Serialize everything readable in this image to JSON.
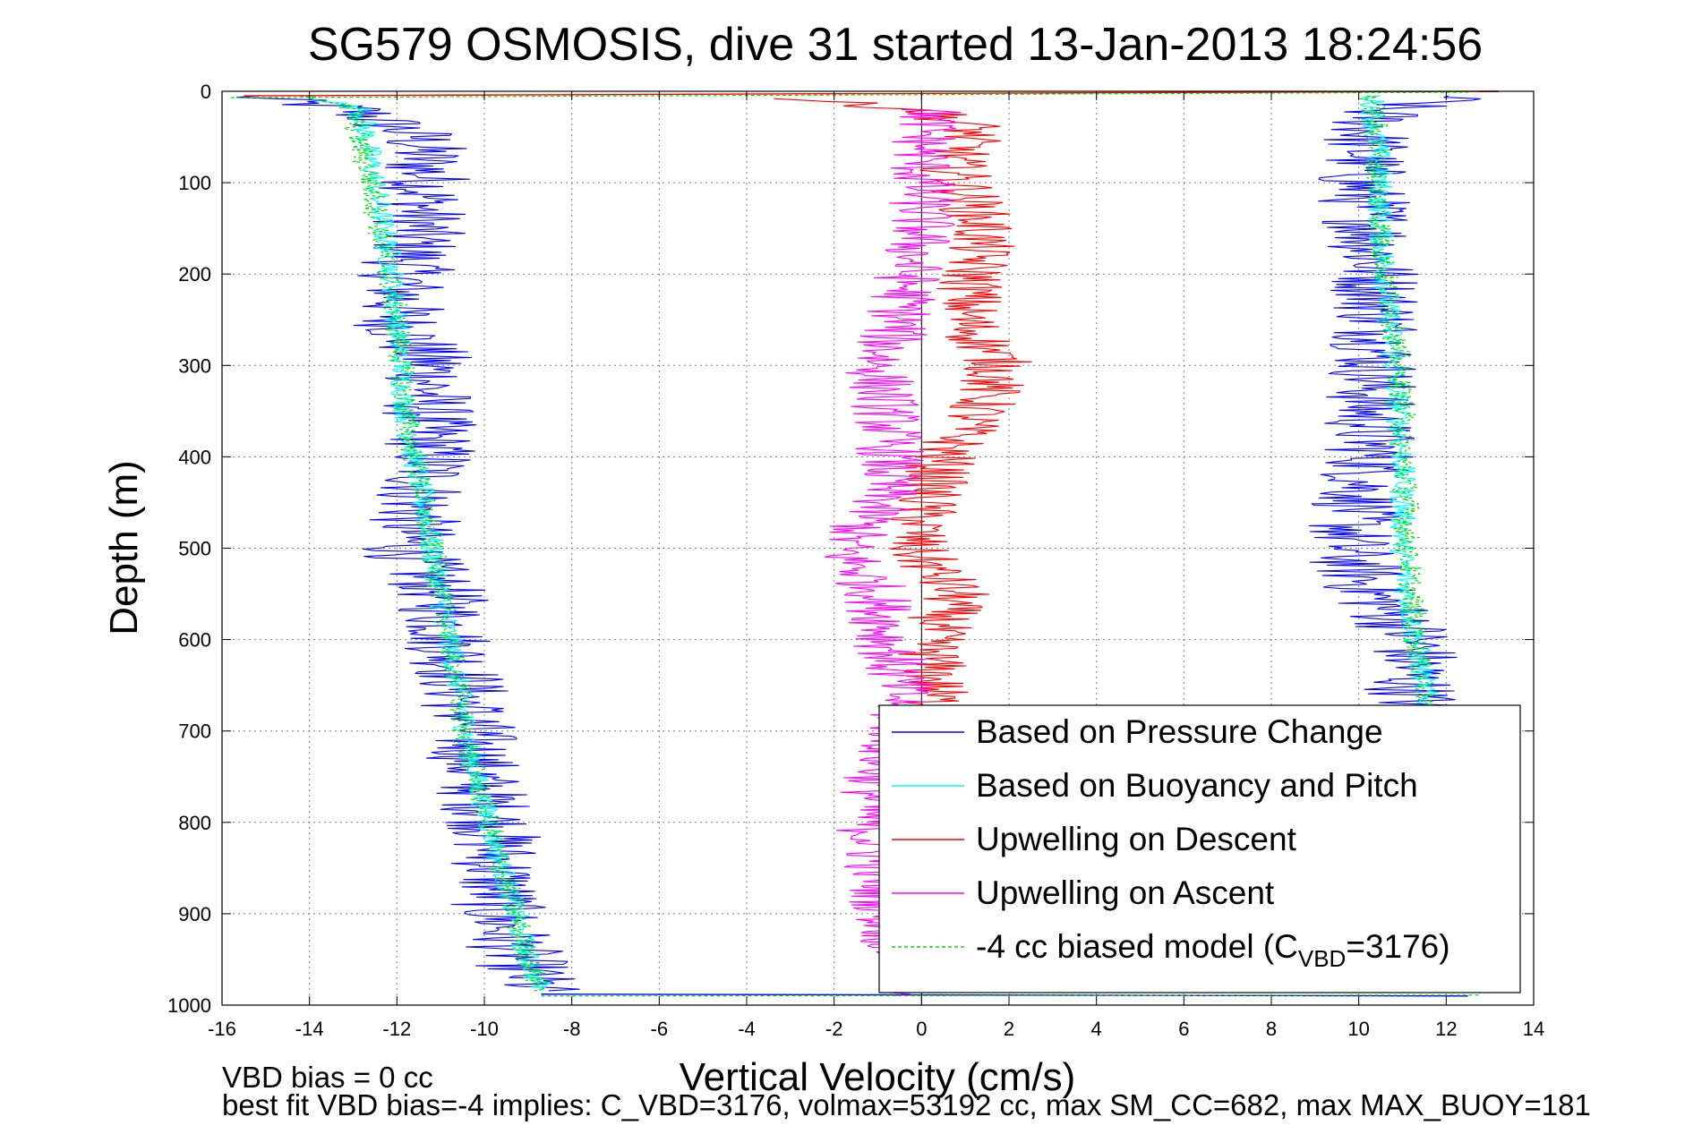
{
  "chart_data": {
    "type": "line",
    "title": "SG579 OSMOSIS, dive 31 started 13-Jan-2013 18:24:56",
    "xlabel": "Vertical Velocity (cm/s)",
    "ylabel": "Depth (m)",
    "xlim": [
      -16,
      14
    ],
    "ylim": [
      0,
      1000
    ],
    "y_reversed": true,
    "grid": true,
    "x_ticks": [
      -16,
      -14,
      -12,
      -10,
      -8,
      -6,
      -4,
      -2,
      0,
      2,
      4,
      6,
      8,
      10,
      12,
      14
    ],
    "y_ticks": [
      0,
      100,
      200,
      300,
      400,
      500,
      600,
      700,
      800,
      900,
      1000
    ],
    "legend_position": "bottom-right",
    "series": [
      {
        "name": "Based on Pressure Change",
        "color": "#0000ff",
        "segments": [
          {
            "noise": 1.1,
            "points": [
              [
                -15.5,
                5
              ],
              [
                -13.0,
                20
              ],
              [
                -11.5,
                50
              ],
              [
                -11.3,
                100
              ],
              [
                -11.5,
                150
              ],
              [
                -11.8,
                200
              ],
              [
                -12.0,
                250
              ],
              [
                -11.2,
                300
              ],
              [
                -11.3,
                350
              ],
              [
                -11.2,
                400
              ],
              [
                -11.5,
                450
              ],
              [
                -11.8,
                500
              ],
              [
                -11.0,
                550
              ],
              [
                -10.8,
                600
              ],
              [
                -10.5,
                650
              ],
              [
                -10.3,
                700
              ],
              [
                -10.2,
                750
              ],
              [
                -9.8,
                800
              ],
              [
                -9.7,
                850
              ],
              [
                -9.7,
                900
              ],
              [
                -9.2,
                950
              ],
              [
                -8.8,
                985
              ]
            ]
          },
          {
            "noise": 1.1,
            "points": [
              [
                12.3,
                5
              ],
              [
                10.5,
                20
              ],
              [
                10.2,
                50
              ],
              [
                10.0,
                100
              ],
              [
                10.3,
                150
              ],
              [
                10.4,
                200
              ],
              [
                10.5,
                250
              ],
              [
                10.4,
                300
              ],
              [
                10.2,
                350
              ],
              [
                10.3,
                400
              ],
              [
                10.0,
                450
              ],
              [
                9.7,
                500
              ],
              [
                10.3,
                550
              ],
              [
                11.3,
                600
              ],
              [
                11.2,
                650
              ],
              [
                11.4,
                685
              ]
            ]
          }
        ]
      },
      {
        "name": "Based on Buoyancy and Pitch",
        "color": "#00ffff",
        "segments": [
          {
            "noise": 0.3,
            "points": [
              [
                -14.0,
                5
              ],
              [
                -12.8,
                20
              ],
              [
                -12.7,
                50
              ],
              [
                -12.5,
                100
              ],
              [
                -12.3,
                150
              ],
              [
                -12.1,
                200
              ],
              [
                -12.0,
                250
              ],
              [
                -11.9,
                300
              ],
              [
                -11.8,
                350
              ],
              [
                -11.6,
                400
              ],
              [
                -11.4,
                450
              ],
              [
                -11.2,
                500
              ],
              [
                -11.0,
                550
              ],
              [
                -10.8,
                600
              ],
              [
                -10.6,
                650
              ],
              [
                -10.4,
                700
              ],
              [
                -10.2,
                750
              ],
              [
                -9.9,
                800
              ],
              [
                -9.6,
                850
              ],
              [
                -9.3,
                900
              ],
              [
                -9.0,
                950
              ],
              [
                -8.7,
                985
              ]
            ]
          },
          {
            "noise": 0.3,
            "points": [
              [
                10.3,
                5
              ],
              [
                10.4,
                50
              ],
              [
                10.5,
                100
              ],
              [
                10.5,
                150
              ],
              [
                10.6,
                200
              ],
              [
                10.7,
                250
              ],
              [
                10.8,
                300
              ],
              [
                10.9,
                350
              ],
              [
                11.0,
                400
              ],
              [
                11.0,
                450
              ],
              [
                11.0,
                500
              ],
              [
                11.1,
                550
              ],
              [
                11.3,
                600
              ],
              [
                11.5,
                650
              ],
              [
                11.6,
                685
              ]
            ]
          }
        ]
      },
      {
        "name": "Upwelling on Descent",
        "color": "#ff0000",
        "segments": [
          {
            "noise": 0.8,
            "points": [
              [
                -3.0,
                8
              ],
              [
                0.0,
                20
              ],
              [
                1.2,
                40
              ],
              [
                0.7,
                80
              ],
              [
                1.4,
                150
              ],
              [
                1.2,
                200
              ],
              [
                1.0,
                250
              ],
              [
                1.8,
                300
              ],
              [
                1.3,
                350
              ],
              [
                0.5,
                400
              ],
              [
                0.1,
                450
              ],
              [
                -0.2,
                500
              ],
              [
                0.8,
                550
              ],
              [
                0.2,
                600
              ],
              [
                0.3,
                650
              ],
              [
                0.3,
                685
              ]
            ]
          }
        ]
      },
      {
        "name": "Upwelling on Ascent",
        "color": "#ff00ff",
        "segments": [
          {
            "noise": 0.8,
            "points": [
              [
                0.2,
                20
              ],
              [
                0.0,
                80
              ],
              [
                0.0,
                150
              ],
              [
                -0.3,
                200
              ],
              [
                -0.5,
                250
              ],
              [
                -1.0,
                300
              ],
              [
                -0.8,
                350
              ],
              [
                -0.7,
                400
              ],
              [
                -0.9,
                450
              ],
              [
                -1.8,
                500
              ],
              [
                -1.0,
                550
              ],
              [
                -0.8,
                600
              ],
              [
                -0.5,
                650
              ],
              [
                -0.5,
                700
              ],
              [
                -1.0,
                750
              ],
              [
                -1.2,
                800
              ],
              [
                -1.0,
                850
              ],
              [
                -0.8,
                900
              ],
              [
                -0.5,
                950
              ],
              [
                0.0,
                990
              ]
            ]
          }
        ]
      },
      {
        "name": "-4 cc biased model (CVBD=3176)",
        "color": "#00dd00",
        "dashed": true,
        "segments": [
          {
            "noise": 0.3,
            "points": [
              [
                -14.0,
                5
              ],
              [
                -13.0,
                20
              ],
              [
                -12.9,
                50
              ],
              [
                -12.6,
                100
              ],
              [
                -12.4,
                150
              ],
              [
                -12.2,
                200
              ],
              [
                -12.0,
                250
              ],
              [
                -11.9,
                300
              ],
              [
                -11.8,
                350
              ],
              [
                -11.6,
                400
              ],
              [
                -11.4,
                450
              ],
              [
                -11.2,
                500
              ],
              [
                -11.0,
                550
              ],
              [
                -10.8,
                600
              ],
              [
                -10.6,
                650
              ],
              [
                -10.5,
                700
              ],
              [
                -10.2,
                750
              ],
              [
                -9.9,
                800
              ],
              [
                -9.6,
                850
              ],
              [
                -9.3,
                900
              ],
              [
                -9.0,
                950
              ],
              [
                -8.7,
                985
              ]
            ]
          },
          {
            "noise": 0.3,
            "points": [
              [
                10.3,
                5
              ],
              [
                10.4,
                50
              ],
              [
                10.4,
                100
              ],
              [
                10.5,
                150
              ],
              [
                10.6,
                200
              ],
              [
                10.8,
                250
              ],
              [
                10.9,
                300
              ],
              [
                11.0,
                350
              ],
              [
                11.0,
                400
              ],
              [
                11.1,
                450
              ],
              [
                11.1,
                500
              ],
              [
                11.2,
                550
              ],
              [
                11.3,
                600
              ],
              [
                11.5,
                650
              ],
              [
                11.6,
                685
              ]
            ]
          }
        ]
      }
    ],
    "legend": {
      "entries": [
        {
          "label": "Based on Pressure Change",
          "color": "#0000ff",
          "dashed": false
        },
        {
          "label": "Based on Buoyancy and Pitch",
          "color": "#00ffff",
          "dashed": false
        },
        {
          "label": "Upwelling on Descent",
          "color": "#ff0000",
          "dashed": false
        },
        {
          "label": "Upwelling on Ascent",
          "color": "#ff00ff",
          "dashed": false
        },
        {
          "label_pre": "-4 cc biased model (C",
          "label_sub": "VBD",
          "label_post": "=3176)",
          "color": "#00dd00",
          "dashed": true
        }
      ]
    }
  },
  "notes": {
    "vbd_bias": "VBD bias = 0 cc",
    "best_fit": "best fit VBD bias=-4 implies: C_VBD=3176, volmax=53192 cc, max SM_CC=682, max MAX_BUOY=181"
  }
}
